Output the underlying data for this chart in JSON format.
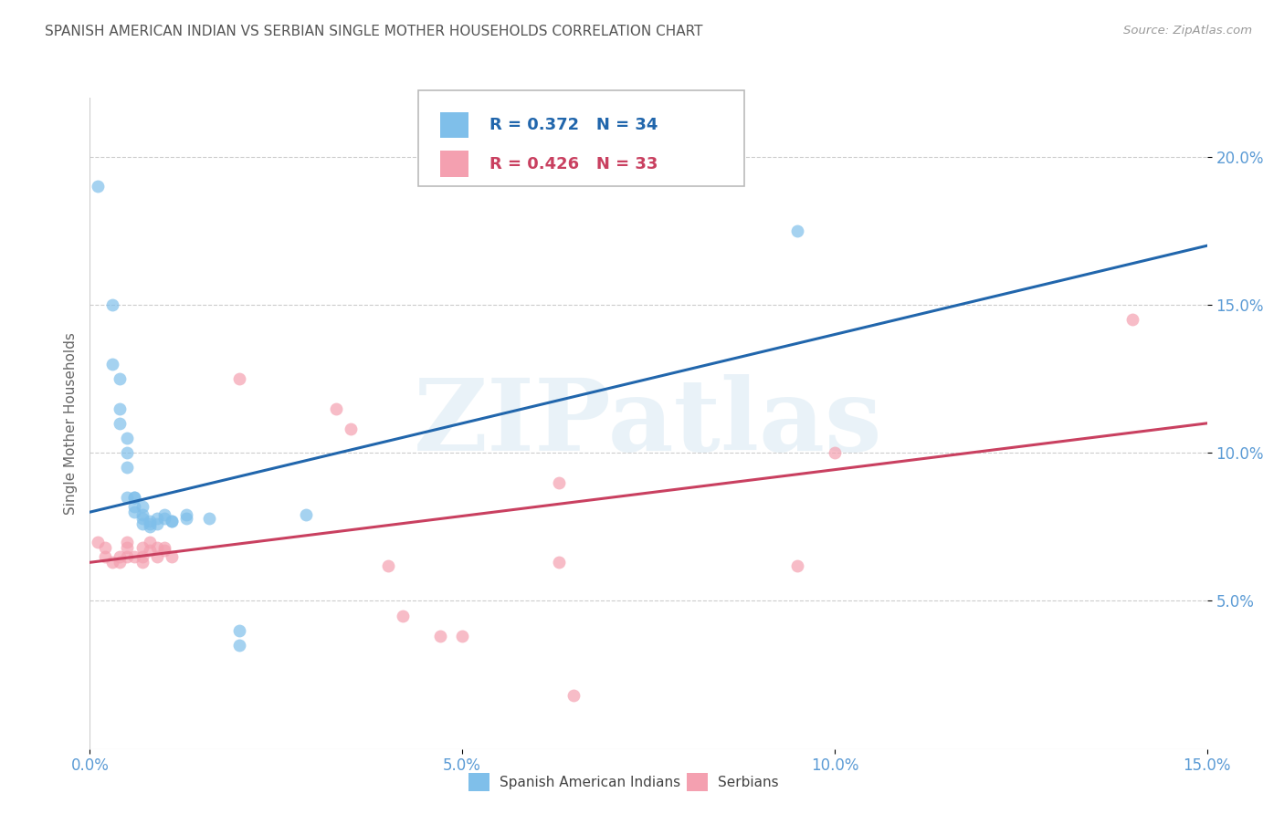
{
  "title": "SPANISH AMERICAN INDIAN VS SERBIAN SINGLE MOTHER HOUSEHOLDS CORRELATION CHART",
  "source": "Source: ZipAtlas.com",
  "ylabel": "Single Mother Households",
  "watermark": "ZIPatlas",
  "xlim": [
    0.0,
    0.15
  ],
  "ylim": [
    0.0,
    0.22
  ],
  "xticks": [
    0.0,
    0.05,
    0.1,
    0.15
  ],
  "yticks_right": [
    0.05,
    0.1,
    0.15,
    0.2
  ],
  "blue_R": "0.372",
  "blue_N": "34",
  "pink_R": "0.426",
  "pink_N": "33",
  "blue_color": "#7fbfea",
  "pink_color": "#f4a0b0",
  "blue_line_color": "#2166ac",
  "pink_line_color": "#c94060",
  "title_color": "#555555",
  "axis_color": "#5b9bd5",
  "grid_color": "#cccccc",
  "blue_scatter": [
    [
      0.001,
      0.19
    ],
    [
      0.003,
      0.15
    ],
    [
      0.003,
      0.13
    ],
    [
      0.004,
      0.125
    ],
    [
      0.004,
      0.115
    ],
    [
      0.004,
      0.11
    ],
    [
      0.005,
      0.105
    ],
    [
      0.005,
      0.1
    ],
    [
      0.005,
      0.095
    ],
    [
      0.005,
      0.085
    ],
    [
      0.006,
      0.085
    ],
    [
      0.006,
      0.082
    ],
    [
      0.006,
      0.085
    ],
    [
      0.006,
      0.08
    ],
    [
      0.007,
      0.079
    ],
    [
      0.007,
      0.082
    ],
    [
      0.007,
      0.078
    ],
    [
      0.007,
      0.076
    ],
    [
      0.008,
      0.077
    ],
    [
      0.008,
      0.075
    ],
    [
      0.008,
      0.076
    ],
    [
      0.009,
      0.076
    ],
    [
      0.009,
      0.078
    ],
    [
      0.01,
      0.079
    ],
    [
      0.01,
      0.078
    ],
    [
      0.011,
      0.077
    ],
    [
      0.011,
      0.077
    ],
    [
      0.013,
      0.079
    ],
    [
      0.013,
      0.078
    ],
    [
      0.016,
      0.078
    ],
    [
      0.02,
      0.04
    ],
    [
      0.02,
      0.035
    ],
    [
      0.095,
      0.175
    ],
    [
      0.029,
      0.079
    ]
  ],
  "pink_scatter": [
    [
      0.001,
      0.07
    ],
    [
      0.002,
      0.068
    ],
    [
      0.002,
      0.065
    ],
    [
      0.003,
      0.063
    ],
    [
      0.004,
      0.063
    ],
    [
      0.004,
      0.065
    ],
    [
      0.005,
      0.07
    ],
    [
      0.005,
      0.068
    ],
    [
      0.005,
      0.065
    ],
    [
      0.006,
      0.065
    ],
    [
      0.007,
      0.063
    ],
    [
      0.007,
      0.065
    ],
    [
      0.007,
      0.068
    ],
    [
      0.008,
      0.07
    ],
    [
      0.008,
      0.067
    ],
    [
      0.009,
      0.068
    ],
    [
      0.009,
      0.065
    ],
    [
      0.01,
      0.068
    ],
    [
      0.01,
      0.067
    ],
    [
      0.011,
      0.065
    ],
    [
      0.02,
      0.125
    ],
    [
      0.033,
      0.115
    ],
    [
      0.035,
      0.108
    ],
    [
      0.04,
      0.062
    ],
    [
      0.042,
      0.045
    ],
    [
      0.047,
      0.038
    ],
    [
      0.05,
      0.038
    ],
    [
      0.063,
      0.09
    ],
    [
      0.063,
      0.063
    ],
    [
      0.095,
      0.062
    ],
    [
      0.1,
      0.1
    ],
    [
      0.14,
      0.145
    ],
    [
      0.065,
      0.018
    ]
  ],
  "blue_line": [
    [
      0.0,
      0.08
    ],
    [
      0.15,
      0.17
    ]
  ],
  "pink_line": [
    [
      0.0,
      0.063
    ],
    [
      0.15,
      0.11
    ]
  ]
}
